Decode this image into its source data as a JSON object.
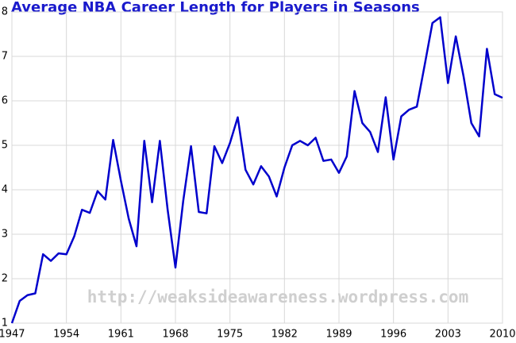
{
  "chart_data": {
    "type": "line",
    "title": "Average NBA Career Length for Players in Seasons",
    "watermark": "http://weaksideawareness.wordpress.com",
    "x": [
      1947,
      1948,
      1949,
      1950,
      1951,
      1952,
      1953,
      1954,
      1955,
      1956,
      1957,
      1958,
      1959,
      1960,
      1961,
      1962,
      1963,
      1964,
      1965,
      1966,
      1967,
      1968,
      1969,
      1970,
      1971,
      1972,
      1973,
      1974,
      1975,
      1976,
      1977,
      1978,
      1979,
      1980,
      1981,
      1982,
      1983,
      1984,
      1985,
      1986,
      1987,
      1988,
      1989,
      1990,
      1991,
      1992,
      1993,
      1994,
      1995,
      1996,
      1997,
      1998,
      1999,
      2000,
      2001,
      2002,
      2003,
      2004,
      2005,
      2006,
      2007,
      2008,
      2009,
      2010
    ],
    "values": [
      1.0,
      1.5,
      1.63,
      1.67,
      2.55,
      2.4,
      2.57,
      2.55,
      2.95,
      3.55,
      3.48,
      3.97,
      3.78,
      5.12,
      4.2,
      3.35,
      2.73,
      5.1,
      3.72,
      5.1,
      3.55,
      2.25,
      3.75,
      4.98,
      3.5,
      3.47,
      4.98,
      4.6,
      5.05,
      5.63,
      4.45,
      4.12,
      4.53,
      4.3,
      3.85,
      4.5,
      5.0,
      5.1,
      5.0,
      5.17,
      4.65,
      4.68,
      4.38,
      4.75,
      6.22,
      5.5,
      5.3,
      4.85,
      6.08,
      4.68,
      5.65,
      5.8,
      5.87,
      6.8,
      7.75,
      7.88,
      6.4,
      7.45,
      6.55,
      5.5,
      5.2,
      7.17,
      6.15,
      6.07
    ],
    "color": "#0000cc",
    "xlim": [
      1947,
      2010
    ],
    "xticks": [
      1947,
      1954,
      1961,
      1968,
      1975,
      1982,
      1989,
      1996,
      2003,
      2010
    ],
    "ylim": [
      1,
      8
    ],
    "yticks": [
      1,
      2,
      3,
      4,
      5,
      6,
      7,
      8
    ],
    "grid": true
  }
}
